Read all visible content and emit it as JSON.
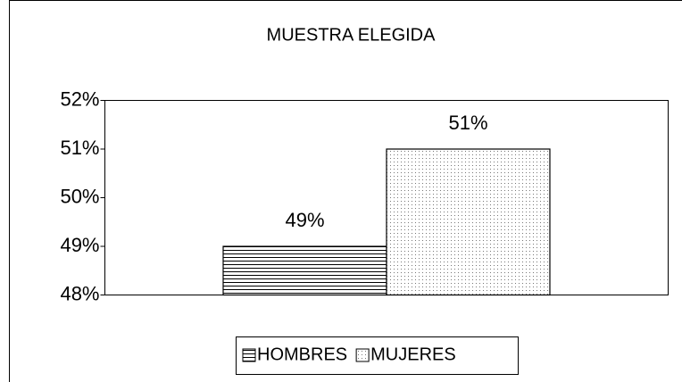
{
  "chart_data": {
    "type": "bar",
    "title": "MUESTRA ELEGIDA",
    "categories": [
      null
    ],
    "series": [
      {
        "name": "HOMBRES",
        "color": "#000000",
        "pattern": "horizontal-lines",
        "values": [
          49
        ],
        "value_labels": [
          "49%"
        ]
      },
      {
        "name": "MUJERES",
        "color": "#000000",
        "pattern": "dots",
        "values": [
          51
        ],
        "value_labels": [
          "51%"
        ]
      }
    ],
    "ylim": [
      48,
      52
    ],
    "yticks": [
      {
        "value": 48,
        "label": "48%"
      },
      {
        "value": 49,
        "label": "49%"
      },
      {
        "value": 50,
        "label": "50%"
      },
      {
        "value": 51,
        "label": "51%"
      },
      {
        "value": 52,
        "label": "52%"
      }
    ],
    "grid": false,
    "legend": "bottom"
  }
}
